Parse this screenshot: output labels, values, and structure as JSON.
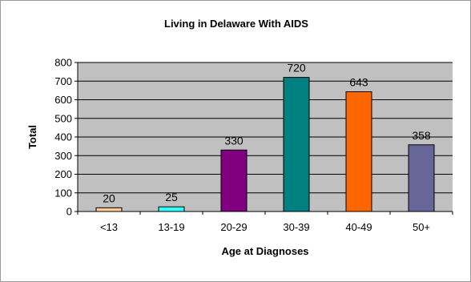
{
  "chart_data": {
    "type": "bar",
    "title": "Living in Delaware With AIDS",
    "xlabel": "Age at Diagnoses",
    "ylabel": "Total",
    "categories": [
      "<13",
      "13-19",
      "20-29",
      "30-39",
      "40-49",
      "50+"
    ],
    "values": [
      20,
      25,
      330,
      720,
      643,
      358
    ],
    "data_labels": [
      "20",
      "25",
      "330",
      "720",
      "643",
      "358"
    ],
    "colors": [
      "#FFCC99",
      "#33FFFF",
      "#800080",
      "#008080",
      "#FF6600",
      "#666699"
    ],
    "plot_background": "#C0C0C0",
    "ylim": [
      0,
      800
    ],
    "yticks": [
      0,
      100,
      200,
      300,
      400,
      500,
      600,
      700,
      800
    ],
    "ytick_labels": [
      "0",
      "100",
      "200",
      "300",
      "400",
      "500",
      "600",
      "700",
      "800"
    ],
    "grid": true,
    "legend": "none"
  }
}
